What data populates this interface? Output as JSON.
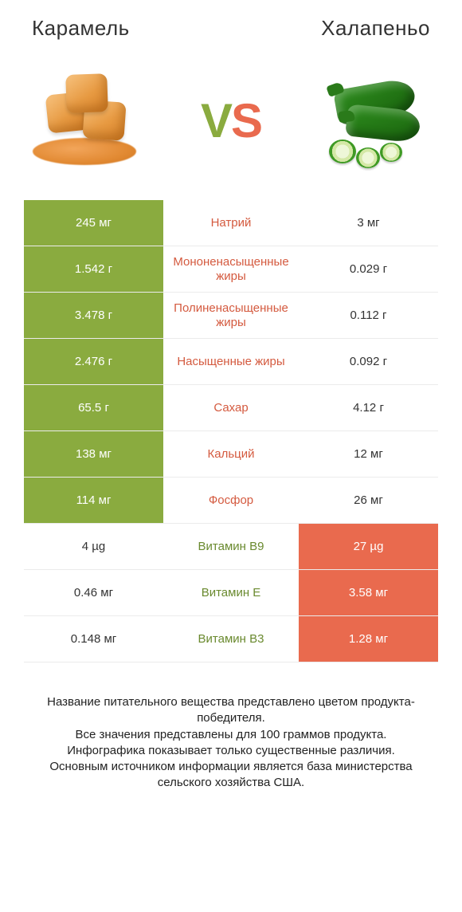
{
  "colors": {
    "left_winner_bg": "#8aab3f",
    "right_winner_bg": "#e96a4e",
    "label_left_winner": "#d45a3f",
    "label_right_winner": "#6a8a2f",
    "text": "#333333",
    "background": "#ffffff"
  },
  "header": {
    "left_title": "Карамель",
    "right_title": "Халапеньо",
    "vs_v": "V",
    "vs_s": "S"
  },
  "rows": [
    {
      "label": "Натрий",
      "left": "245 мг",
      "right": "3 мг",
      "winner": "left"
    },
    {
      "label": "Мононенасыщенные жиры",
      "left": "1.542 г",
      "right": "0.029 г",
      "winner": "left"
    },
    {
      "label": "Полиненасыщенные жиры",
      "left": "3.478 г",
      "right": "0.112 г",
      "winner": "left"
    },
    {
      "label": "Насыщенные жиры",
      "left": "2.476 г",
      "right": "0.092 г",
      "winner": "left"
    },
    {
      "label": "Сахар",
      "left": "65.5 г",
      "right": "4.12 г",
      "winner": "left"
    },
    {
      "label": "Кальций",
      "left": "138 мг",
      "right": "12 мг",
      "winner": "left"
    },
    {
      "label": "Фосфор",
      "left": "114 мг",
      "right": "26 мг",
      "winner": "left"
    },
    {
      "label": "Витамин B9",
      "left": "4 µg",
      "right": "27 µg",
      "winner": "right"
    },
    {
      "label": "Витамин E",
      "left": "0.46 мг",
      "right": "3.58 мг",
      "winner": "right"
    },
    {
      "label": "Витамин B3",
      "left": "0.148 мг",
      "right": "1.28 мг",
      "winner": "right"
    }
  ],
  "footer": {
    "line1": "Название питательного вещества представлено цветом продукта-победителя.",
    "line2": "Все значения представлены для 100 граммов продукта.",
    "line3": "Инфографика показывает только существенные различия.",
    "line4": "Основным источником информации является база министерства сельского хозяйства США."
  }
}
